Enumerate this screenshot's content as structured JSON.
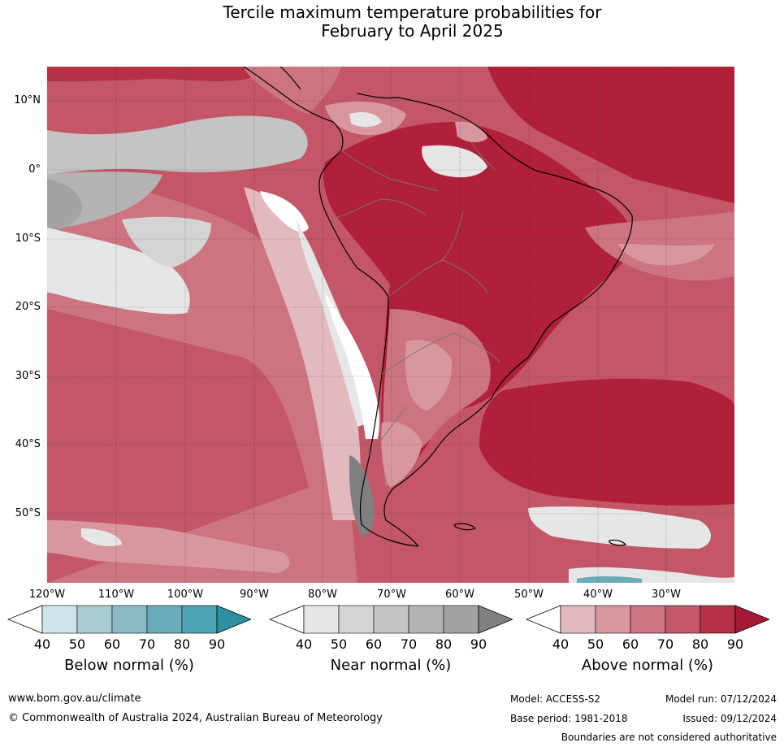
{
  "title": {
    "line1": "Tercile maximum temperature probabilities for",
    "line2": "February to April 2025"
  },
  "map": {
    "lat_labels": [
      "10°N",
      "0°",
      "10°S",
      "20°S",
      "30°S",
      "40°S",
      "50°S"
    ],
    "lon_labels": [
      "120°W",
      "110°W",
      "100°W",
      "90°W",
      "80°W",
      "70°W",
      "60°W",
      "50°W",
      "40°W",
      "30°W"
    ]
  },
  "colorbars": [
    {
      "label": "Below normal (%)",
      "ticks": [
        "40",
        "50",
        "60",
        "70",
        "80",
        "90"
      ],
      "colors": [
        "#ffffff",
        "#cde4ea",
        "#a8cbd2",
        "#8bbac5",
        "#6aabb8",
        "#4da4b4",
        "#2e8fa2"
      ]
    },
    {
      "label": "Near normal (%)",
      "ticks": [
        "40",
        "50",
        "60",
        "70",
        "80",
        "90"
      ],
      "colors": [
        "#ffffff",
        "#e6e6e6",
        "#d4d4d4",
        "#c4c4c4",
        "#b4b4b4",
        "#a3a3a3",
        "#808080"
      ]
    },
    {
      "label": "Above normal (%)",
      "ticks": [
        "40",
        "50",
        "60",
        "70",
        "80",
        "90"
      ],
      "colors": [
        "#ffffff",
        "#e2b9be",
        "#d8979f",
        "#cc7480",
        "#c35667",
        "#b83045",
        "#a51836"
      ]
    }
  ],
  "footer": {
    "website": "www.bom.gov.au/climate",
    "copyright": "© Commonwealth of Australia 2024, Australian Bureau of Meteorology",
    "model": "Model: ACCESS-S2",
    "base_period": "Base period: 1981-2018",
    "model_run": "Model run: 07/12/2024",
    "issued": "Issued: 09/12/2024",
    "disclaimer": "Boundaries are not considered authoritative"
  }
}
